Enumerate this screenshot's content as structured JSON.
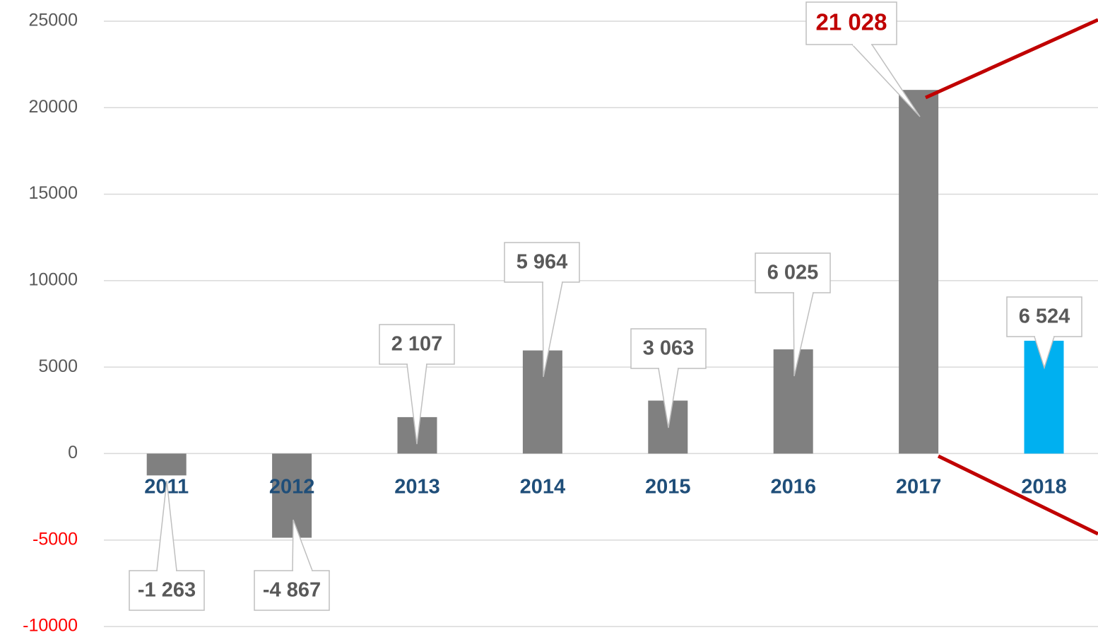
{
  "chart_data": {
    "type": "bar",
    "categories": [
      "2011",
      "2012",
      "2013",
      "2014",
      "2015",
      "2016",
      "2017",
      "2018"
    ],
    "values": [
      -1263,
      -4867,
      2107,
      5964,
      3063,
      6025,
      21028,
      6524
    ],
    "value_labels": [
      "-1 263",
      "-4 867",
      "2 107",
      "5 964",
      "3 063",
      "6 025",
      "21 028",
      "6 524"
    ],
    "colors": [
      "#808080",
      "#808080",
      "#808080",
      "#808080",
      "#808080",
      "#808080",
      "#808080",
      "#00b0f0"
    ],
    "highlight_label_color": "#c00000",
    "negative_tick_color": "#ff0000",
    "ylim": [
      -10000,
      25000
    ],
    "yticks": [
      -10000,
      -5000,
      0,
      5000,
      10000,
      15000,
      20000,
      25000
    ],
    "grid": true
  }
}
